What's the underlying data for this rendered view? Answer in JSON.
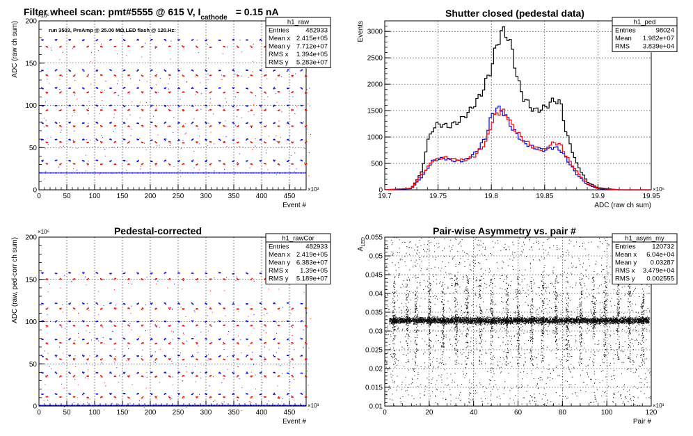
{
  "chart_data": [
    {
      "type": "scatter",
      "title": "Filter wheel scan: pmt#5555 @   615 V, I",
      "title_sub": "cathode",
      "title_tail": "= 0.15 nA",
      "annotation": "run 3503, PreAmp @ 25.00 MΩ,LED flash @  120.Hz:",
      "xlabel": "Event #",
      "ylabel": "ADC (raw ch sum)",
      "x_exponent": "×10³",
      "y_exponent": "×10⁶",
      "xlim": [
        0,
        480
      ],
      "ylim": [
        0,
        200
      ],
      "xticks": [
        "0",
        "50",
        "100",
        "150",
        "200",
        "250",
        "300",
        "350",
        "400",
        "450"
      ],
      "yticks": [
        "0",
        "50",
        "100",
        "150",
        "200"
      ],
      "grid": true,
      "colors": {
        "red": "#ff0000",
        "blue": "#0000ff"
      },
      "levels": [
        {
          "y": 178,
          "color": "blue"
        },
        {
          "y": 170,
          "color": "red"
        },
        {
          "y": 142,
          "color": "blue"
        },
        {
          "y": 136,
          "color": "red"
        },
        {
          "y": 121,
          "color": "blue"
        },
        {
          "y": 116,
          "color": "red"
        },
        {
          "y": 100,
          "color": "blue"
        },
        {
          "y": 95,
          "color": "red"
        },
        {
          "y": 80,
          "color": "blue"
        },
        {
          "y": 76,
          "color": "red"
        },
        {
          "y": 60,
          "color": "blue"
        },
        {
          "y": 57,
          "color": "red"
        },
        {
          "y": 35,
          "color": "blue"
        },
        {
          "y": 31,
          "color": "red"
        }
      ],
      "baseline_y": 20,
      "stats": {
        "name": "h1_raw",
        "rows": [
          [
            "Entries",
            "482933"
          ],
          [
            "Mean x",
            "2.415e+05"
          ],
          [
            "Mean y",
            "7.712e+07"
          ],
          [
            "RMS x",
            "1.394e+05"
          ],
          [
            "RMS y",
            "5.283e+07"
          ]
        ]
      }
    },
    {
      "type": "line",
      "title": "Shutter closed (pedestal data)",
      "xlabel": "ADC (raw ch sum)",
      "ylabel": "Events",
      "x_exponent": "×10⁶",
      "xlim": [
        19.7,
        19.95
      ],
      "ylim": [
        0,
        3200
      ],
      "xticks": [
        "19.7",
        "19.75",
        "19.8",
        "19.85",
        "19.9",
        "19.95"
      ],
      "yticks": [
        "0",
        "500",
        "1000",
        "1500",
        "2000",
        "2500",
        "3000"
      ],
      "grid": true,
      "series": [
        {
          "color": "#000000",
          "x": [
            19.7,
            19.725,
            19.735,
            19.74,
            19.745,
            19.75,
            19.76,
            19.77,
            19.78,
            19.79,
            19.8,
            19.805,
            19.81,
            19.815,
            19.82,
            19.825,
            19.83,
            19.84,
            19.85,
            19.855,
            19.86,
            19.865,
            19.87,
            19.88,
            19.89,
            19.9,
            19.91,
            19.92
          ],
          "y": [
            0,
            30,
            350,
            900,
            1150,
            1250,
            1200,
            1300,
            1500,
            1800,
            2300,
            2750,
            3000,
            2950,
            2600,
            2050,
            1750,
            1500,
            1550,
            1650,
            1700,
            1650,
            1100,
            500,
            150,
            40,
            20,
            0
          ]
        },
        {
          "color": "#0000ff",
          "x": [
            19.7,
            19.725,
            19.735,
            19.745,
            19.755,
            19.765,
            19.775,
            19.785,
            19.795,
            19.8,
            19.805,
            19.81,
            19.815,
            19.82,
            19.83,
            19.84,
            19.85,
            19.855,
            19.86,
            19.865,
            19.87,
            19.88,
            19.89,
            19.9,
            19.92
          ],
          "y": [
            0,
            20,
            250,
            550,
            600,
            550,
            550,
            700,
            1000,
            1400,
            1550,
            1500,
            1350,
            1150,
            900,
            800,
            750,
            800,
            800,
            750,
            600,
            300,
            100,
            20,
            0
          ]
        },
        {
          "color": "#ff0000",
          "x": [
            19.7,
            19.725,
            19.735,
            19.745,
            19.755,
            19.765,
            19.775,
            19.785,
            19.795,
            19.8,
            19.805,
            19.81,
            19.815,
            19.82,
            19.83,
            19.84,
            19.85,
            19.855,
            19.86,
            19.865,
            19.87,
            19.88,
            19.89,
            19.9,
            19.92
          ],
          "y": [
            0,
            30,
            300,
            550,
            620,
            580,
            560,
            650,
            900,
            1250,
            1450,
            1500,
            1400,
            1200,
            950,
            800,
            750,
            850,
            900,
            850,
            650,
            350,
            120,
            25,
            0
          ]
        }
      ],
      "stats": {
        "name": "h1_ped",
        "rows": [
          [
            "Entries",
            "98024"
          ],
          [
            "Mean",
            "1.982e+07"
          ],
          [
            "RMS",
            "3.839e+04"
          ]
        ]
      }
    },
    {
      "type": "scatter",
      "title": "Pedestal-corrected",
      "xlabel": "Event #",
      "ylabel": "ADC (raw, ped-corr ch sum)",
      "x_exponent": "×10³",
      "y_exponent": "×10⁶",
      "xlim": [
        0,
        480
      ],
      "ylim": [
        0,
        200
      ],
      "xticks": [
        "0",
        "50",
        "100",
        "150",
        "200",
        "250",
        "300",
        "350",
        "400",
        "450"
      ],
      "yticks": [
        "0",
        "50",
        "100",
        "150",
        "200"
      ],
      "grid": true,
      "colors": {
        "red": "#ff0000",
        "blue": "#0000ff"
      },
      "levels": [
        {
          "y": 158,
          "color": "blue"
        },
        {
          "y": 151,
          "color": "red"
        },
        {
          "y": 122,
          "color": "blue"
        },
        {
          "y": 116,
          "color": "red"
        },
        {
          "y": 101,
          "color": "blue"
        },
        {
          "y": 96,
          "color": "red"
        },
        {
          "y": 80,
          "color": "blue"
        },
        {
          "y": 75,
          "color": "red"
        },
        {
          "y": 60,
          "color": "blue"
        },
        {
          "y": 56,
          "color": "red"
        },
        {
          "y": 40,
          "color": "blue"
        },
        {
          "y": 36,
          "color": "red"
        },
        {
          "y": 15,
          "color": "blue"
        },
        {
          "y": 11,
          "color": "red"
        }
      ],
      "baseline_y": 1,
      "stats": {
        "name": "h1_rawCor",
        "rows": [
          [
            "Entries",
            "482933"
          ],
          [
            "Mean x",
            "2.419e+05"
          ],
          [
            "Mean y",
            "6.383e+07"
          ],
          [
            "RMS x",
            "1.39e+05"
          ],
          [
            "RMS y",
            "5.189e+07"
          ]
        ]
      }
    },
    {
      "type": "scatter",
      "title": "Pair-wise Asymmetry vs. pair #",
      "xlabel": "Pair #",
      "ylabel": "A",
      "ylabel_sub": "LED",
      "x_exponent": "×10³",
      "xlim": [
        0,
        120
      ],
      "ylim": [
        0.01,
        0.055
      ],
      "xticks": [
        "0",
        "20",
        "40",
        "60",
        "80",
        "100",
        "120"
      ],
      "yticks": [
        "0.01",
        "0.015",
        "0.02",
        "0.025",
        "0.03",
        "0.035",
        "0.04",
        "0.045",
        "0.05",
        "0.055"
      ],
      "grid": true,
      "band_center": 0.03287,
      "band_halfwidth": 0.0013,
      "spike_x": [
        4,
        10,
        14,
        20,
        26,
        32,
        37,
        43,
        48,
        55,
        60,
        66,
        71,
        77,
        82,
        88,
        94,
        99,
        105,
        110,
        116
      ],
      "stats": {
        "name": "h1_asym_my",
        "rows": [
          [
            "Entries",
            "120732"
          ],
          [
            "Mean x",
            "6.04e+04"
          ],
          [
            "Mean y",
            "0.03287"
          ],
          [
            "RMS x",
            "3.479e+04"
          ],
          [
            "RMS y",
            "0.002555"
          ]
        ]
      }
    }
  ]
}
